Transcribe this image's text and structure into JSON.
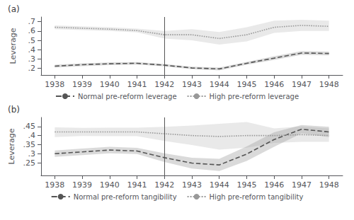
{
  "chart_data": [
    {
      "type": "line",
      "title": "(a)",
      "ylabel": "Leverage",
      "x": [
        1938,
        1939,
        1940,
        1941,
        1942,
        1943,
        1944,
        1945,
        1946,
        1947,
        1948
      ],
      "xlim": [
        1937.5,
        1948.5
      ],
      "xticks": [
        1938,
        1939,
        1940,
        1941,
        1942,
        1943,
        1944,
        1945,
        1946,
        1947,
        1948
      ],
      "ylim": [
        0.13,
        0.75
      ],
      "yticks": [
        {
          "value": 0.2,
          "label": ".2"
        },
        {
          "value": 0.3,
          "label": ".3"
        },
        {
          "value": 0.4,
          "label": ".4"
        },
        {
          "value": 0.5,
          "label": ".5"
        },
        {
          "value": 0.6,
          "label": ".6"
        },
        {
          "value": 0.7,
          "label": ".7"
        }
      ],
      "grid": false,
      "legend": "bottom",
      "vline_x": 1942,
      "series": [
        {
          "name": "Normal pre-reform leverage",
          "color": "#555555",
          "line_style": "dashed",
          "values": [
            0.225,
            0.24,
            0.25,
            0.255,
            0.235,
            0.205,
            0.195,
            0.255,
            0.31,
            0.365,
            0.36
          ],
          "upper": [
            0.24,
            0.255,
            0.265,
            0.268,
            0.248,
            0.218,
            0.21,
            0.27,
            0.33,
            0.385,
            0.38
          ],
          "lower": [
            0.21,
            0.225,
            0.235,
            0.242,
            0.222,
            0.192,
            0.18,
            0.24,
            0.29,
            0.345,
            0.34
          ]
        },
        {
          "name": "High pre-reform leverage",
          "color": "#999999",
          "line_style": "dotted",
          "values": [
            0.64,
            0.63,
            0.62,
            0.605,
            0.56,
            0.56,
            0.52,
            0.56,
            0.64,
            0.66,
            0.65
          ],
          "upper": [
            0.66,
            0.65,
            0.64,
            0.625,
            0.6,
            0.62,
            0.59,
            0.64,
            0.71,
            0.72,
            0.71
          ],
          "lower": [
            0.62,
            0.61,
            0.6,
            0.585,
            0.52,
            0.5,
            0.455,
            0.49,
            0.58,
            0.6,
            0.6
          ]
        }
      ]
    },
    {
      "type": "line",
      "title": "(b)",
      "ylabel": "Leverage",
      "x": [
        1938,
        1939,
        1940,
        1941,
        1942,
        1943,
        1944,
        1945,
        1946,
        1947,
        1948
      ],
      "xlim": [
        1937.5,
        1948.5
      ],
      "xticks": [
        1938,
        1939,
        1940,
        1941,
        1942,
        1943,
        1944,
        1945,
        1946,
        1947,
        1948
      ],
      "ylim": [
        0.18,
        0.5
      ],
      "yticks": [
        {
          "value": 0.25,
          "label": ".25"
        },
        {
          "value": 0.3,
          "label": ".3"
        },
        {
          "value": 0.35,
          "label": ".35"
        },
        {
          "value": 0.4,
          "label": ".4"
        },
        {
          "value": 0.45,
          "label": ".45"
        }
      ],
      "grid": false,
      "legend": "bottom",
      "vline_x": 1942,
      "series": [
        {
          "name": "Normal pre-reform tangibility",
          "color": "#555555",
          "line_style": "dashed",
          "values": [
            0.3,
            0.31,
            0.32,
            0.315,
            0.278,
            0.248,
            0.238,
            0.298,
            0.378,
            0.435,
            0.42
          ],
          "upper": [
            0.318,
            0.328,
            0.338,
            0.332,
            0.302,
            0.278,
            0.272,
            0.34,
            0.418,
            0.458,
            0.448
          ],
          "lower": [
            0.282,
            0.292,
            0.302,
            0.298,
            0.254,
            0.218,
            0.204,
            0.26,
            0.338,
            0.412,
            0.392
          ]
        },
        {
          "name": "High pre-reform tangibility",
          "color": "#999999",
          "line_style": "dotted",
          "values": [
            0.42,
            0.42,
            0.42,
            0.42,
            0.41,
            0.4,
            0.395,
            0.4,
            0.4,
            0.405,
            0.4
          ],
          "upper": [
            0.445,
            0.442,
            0.443,
            0.443,
            0.448,
            0.455,
            0.465,
            0.475,
            0.44,
            0.45,
            0.44
          ],
          "lower": [
            0.392,
            0.398,
            0.397,
            0.397,
            0.37,
            0.348,
            0.322,
            0.333,
            0.36,
            0.365,
            0.365
          ]
        }
      ]
    }
  ]
}
